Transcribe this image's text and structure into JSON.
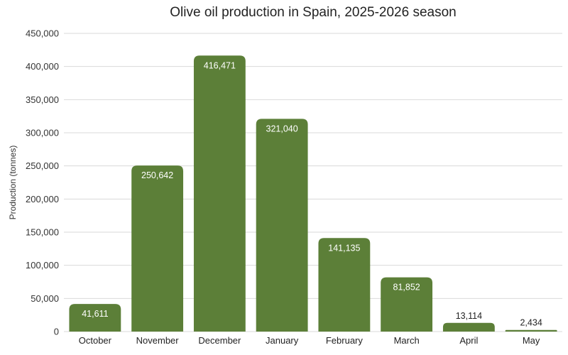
{
  "chart_data": {
    "type": "bar",
    "title": "Olive oil production in Spain, 2025-2026 season",
    "xlabel": "",
    "ylabel": "Production (tonnes)",
    "ylim": [
      0,
      450000
    ],
    "yticks": [
      0,
      50000,
      100000,
      150000,
      200000,
      250000,
      300000,
      350000,
      400000,
      450000
    ],
    "ytick_labels": [
      "0",
      "50,000",
      "100,000",
      "150,000",
      "200,000",
      "250,000",
      "300,000",
      "350,000",
      "400,000",
      "450,000"
    ],
    "categories": [
      "October",
      "November",
      "December",
      "January",
      "February",
      "March",
      "April",
      "May"
    ],
    "values": [
      41611,
      250642,
      416471,
      321040,
      141135,
      81852,
      13114,
      2434
    ],
    "value_labels": [
      "41,611",
      "250,642",
      "416,471",
      "321,040",
      "141,135",
      "81,852",
      "13,114",
      "2,434"
    ],
    "grid": true,
    "legend": "none",
    "colors": {
      "bar": "#5c7f38",
      "grid": "#d9d9d9",
      "label_inside": "#ffffff",
      "label_outside": "#222222"
    }
  }
}
